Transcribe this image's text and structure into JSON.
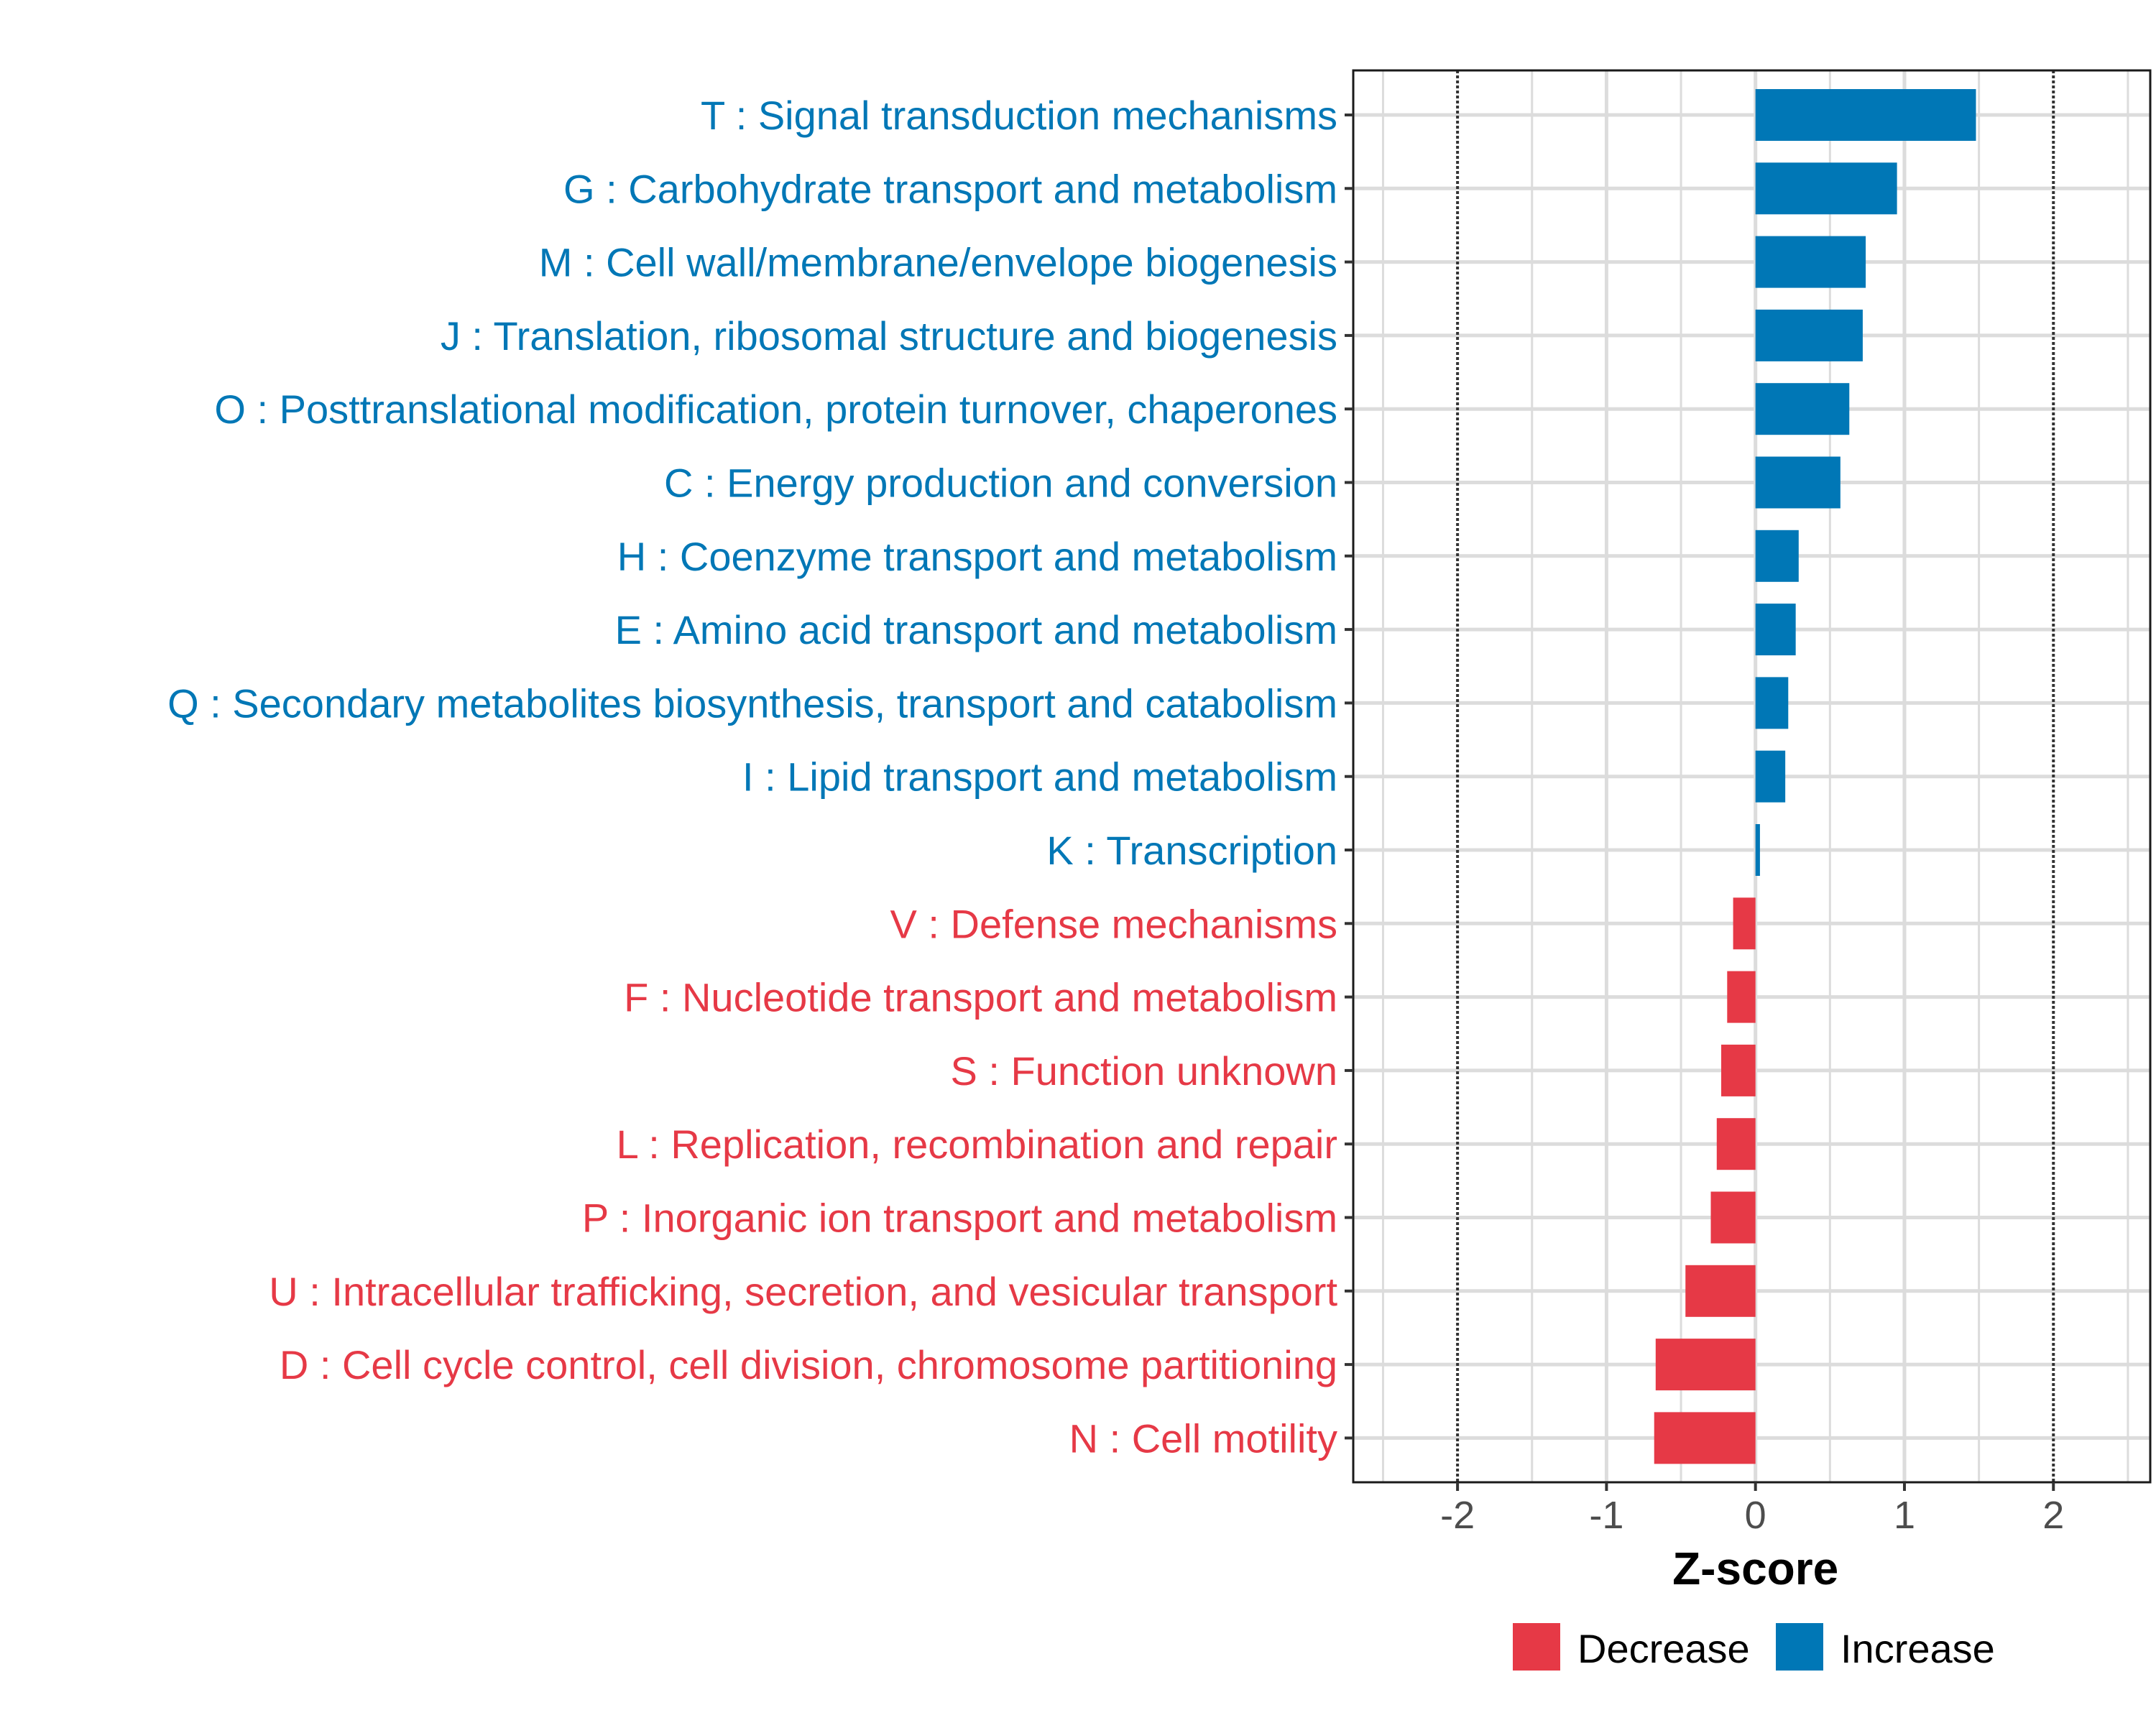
{
  "chart_data": {
    "type": "bar",
    "orientation": "horizontal",
    "title": "",
    "xlabel": "Z-score",
    "ylabel": "",
    "xlim": [
      -2.7,
      2.65
    ],
    "xticks": [
      -2,
      -1,
      0,
      1,
      2
    ],
    "threshold_lines": [
      -2,
      2
    ],
    "grid": true,
    "legend_position": "bottom",
    "colors": {
      "Decrease": "#E63946",
      "Increase": "#0077B6"
    },
    "categories": [
      "T : Signal transduction mechanisms",
      "G : Carbohydrate transport and metabolism",
      "M : Cell wall/membrane/envelope biogenesis",
      "J : Translation, ribosomal structure and biogenesis",
      "O : Posttranslational modification, protein turnover, chaperones",
      "C : Energy production and conversion",
      "H : Coenzyme transport and metabolism",
      "E : Amino acid transport and metabolism",
      "Q : Secondary metabolites biosynthesis, transport and catabolism",
      "I : Lipid transport and metabolism",
      "K : Transcription",
      "V : Defense mechanisms",
      "F : Nucleotide transport and metabolism",
      "S : Function unknown",
      "L : Replication, recombination and repair",
      "P : Inorganic ion transport and metabolism",
      "U : Intracellular trafficking, secretion, and vesicular transport",
      "D : Cell cycle control, cell division, chromosome partitioning",
      "N : Cell motility"
    ],
    "values": [
      1.48,
      0.95,
      0.74,
      0.72,
      0.63,
      0.57,
      0.29,
      0.27,
      0.22,
      0.2,
      0.03,
      -0.15,
      -0.19,
      -0.23,
      -0.26,
      -0.3,
      -0.47,
      -0.67,
      -0.68
    ],
    "groups": [
      "Increase",
      "Increase",
      "Increase",
      "Increase",
      "Increase",
      "Increase",
      "Increase",
      "Increase",
      "Increase",
      "Increase",
      "Increase",
      "Decrease",
      "Decrease",
      "Decrease",
      "Decrease",
      "Decrease",
      "Decrease",
      "Decrease",
      "Decrease"
    ],
    "legend": [
      {
        "label": "Decrease",
        "group": "Decrease"
      },
      {
        "label": "Increase",
        "group": "Increase"
      }
    ]
  }
}
